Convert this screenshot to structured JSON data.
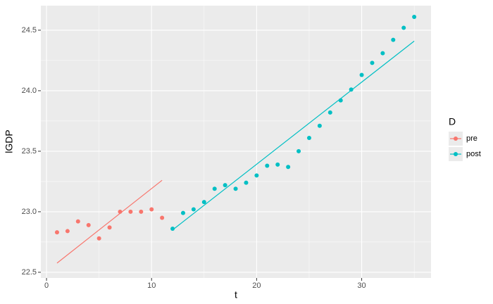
{
  "chart_data": {
    "type": "scatter",
    "x_label": "t",
    "y_label": "lGDP",
    "legend_title": "D",
    "xlim": [
      -0.54,
      36.6
    ],
    "ylim": [
      22.453,
      24.703
    ],
    "xticks": [
      0,
      10,
      20,
      30
    ],
    "yticks": [
      22.5,
      {
        "value": 23,
        "label": "23.0"
      },
      23.5,
      {
        "value": 24,
        "label": "24.0"
      },
      24.5
    ],
    "grid": true,
    "legend_position": "right",
    "series": [
      {
        "name": "pre",
        "color": "#f8766d",
        "x": [
          1,
          2,
          3,
          4,
          5,
          6,
          7,
          8,
          9,
          10,
          11
        ],
        "values": [
          22.83,
          22.84,
          22.92,
          22.89,
          22.78,
          22.87,
          23.0,
          23.0,
          23.0,
          23.02,
          22.95
        ],
        "fit": {
          "x": [
            1,
            11
          ],
          "values": [
            22.576,
            23.26
          ]
        }
      },
      {
        "name": "post",
        "color": "#00bfc4",
        "x": [
          12,
          13,
          14,
          15,
          16,
          17,
          18,
          19,
          20,
          21,
          22,
          23,
          24,
          25,
          26,
          27,
          28,
          29,
          30,
          31,
          32,
          33,
          34,
          35
        ],
        "values": [
          22.86,
          22.99,
          23.02,
          23.08,
          23.19,
          23.22,
          23.19,
          23.24,
          23.3,
          23.38,
          23.39,
          23.37,
          23.5,
          23.61,
          23.71,
          23.82,
          23.92,
          24.01,
          24.13,
          24.23,
          24.31,
          24.42,
          24.52,
          24.61
        ],
        "fit": {
          "x": [
            12,
            35
          ],
          "values": [
            22.85,
            24.41
          ]
        }
      }
    ]
  }
}
